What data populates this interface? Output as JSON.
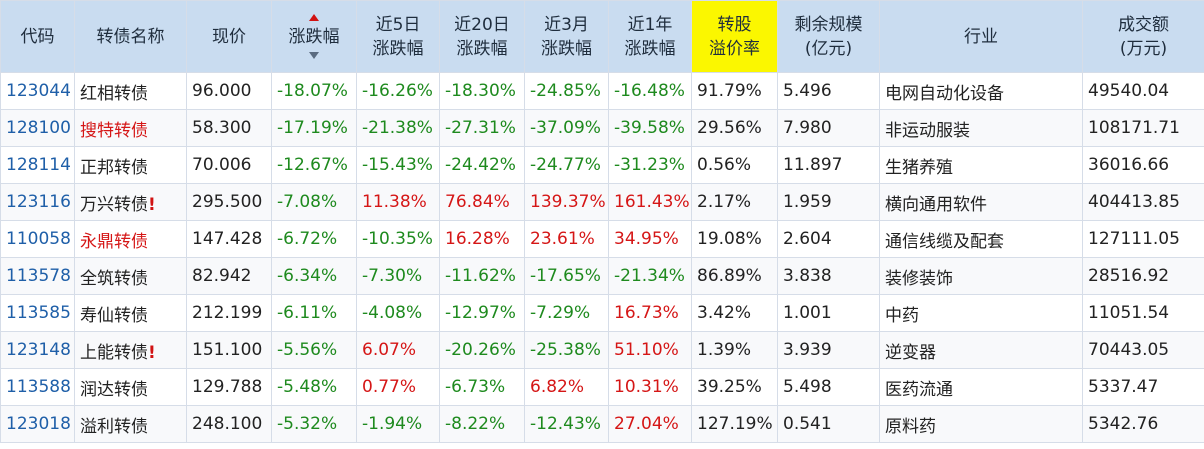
{
  "header": {
    "code": "代码",
    "name": "转债名称",
    "price": "现价",
    "change": "涨跌幅",
    "chg5d": [
      "近5日",
      "涨跌幅"
    ],
    "chg20d": [
      "近20日",
      "涨跌幅"
    ],
    "chg3m": [
      "近3月",
      "涨跌幅"
    ],
    "chg1y": [
      "近1年",
      "涨跌幅"
    ],
    "premium": [
      "转股",
      "溢价率"
    ],
    "remaining": [
      "剩余规模",
      "(亿元)"
    ],
    "industry": "行业",
    "turnover": [
      "成交额",
      "(万元)"
    ]
  },
  "colors": {
    "header_bg": "#c9dcf0",
    "highlight": "#fbf700",
    "up": "#d51616",
    "down": "#1e8a1e",
    "code": "#1f5fa8"
  },
  "rows": [
    {
      "code": "123044",
      "name": "红相转债",
      "name_red": false,
      "mark": "",
      "price": "96.000",
      "change": "-18.07%",
      "chg5d": "-16.26%",
      "chg20d": "-18.30%",
      "chg3m": "-24.85%",
      "chg1y": "-16.48%",
      "premium": "91.79%",
      "remaining": "5.496",
      "industry": "电网自动化设备",
      "turnover": "49540.04"
    },
    {
      "code": "128100",
      "name": "搜特转债",
      "name_red": true,
      "mark": "",
      "price": "58.300",
      "change": "-17.19%",
      "chg5d": "-21.38%",
      "chg20d": "-27.31%",
      "chg3m": "-37.09%",
      "chg1y": "-39.58%",
      "premium": "29.56%",
      "remaining": "7.980",
      "industry": "非运动服装",
      "turnover": "108171.71"
    },
    {
      "code": "128114",
      "name": "正邦转债",
      "name_red": false,
      "mark": "",
      "price": "70.006",
      "change": "-12.67%",
      "chg5d": "-15.43%",
      "chg20d": "-24.42%",
      "chg3m": "-24.77%",
      "chg1y": "-31.23%",
      "premium": "0.56%",
      "remaining": "11.897",
      "industry": "生猪养殖",
      "turnover": "36016.66"
    },
    {
      "code": "123116",
      "name": "万兴转债",
      "name_red": false,
      "mark": "!",
      "price": "295.500",
      "change": "-7.08%",
      "chg5d": "11.38%",
      "chg20d": "76.84%",
      "chg3m": "139.37%",
      "chg1y": "161.43%",
      "premium": "2.17%",
      "remaining": "1.959",
      "industry": "横向通用软件",
      "turnover": "404413.85"
    },
    {
      "code": "110058",
      "name": "永鼎转债",
      "name_red": true,
      "mark": "",
      "price": "147.428",
      "change": "-6.72%",
      "chg5d": "-10.35%",
      "chg20d": "16.28%",
      "chg3m": "23.61%",
      "chg1y": "34.95%",
      "premium": "19.08%",
      "remaining": "2.604",
      "industry": "通信线缆及配套",
      "turnover": "127111.05"
    },
    {
      "code": "113578",
      "name": "全筑转债",
      "name_red": false,
      "mark": "",
      "price": "82.942",
      "change": "-6.34%",
      "chg5d": "-7.30%",
      "chg20d": "-11.62%",
      "chg3m": "-17.65%",
      "chg1y": "-21.34%",
      "premium": "86.89%",
      "remaining": "3.838",
      "industry": "装修装饰",
      "turnover": "28516.92"
    },
    {
      "code": "113585",
      "name": "寿仙转债",
      "name_red": false,
      "mark": "",
      "price": "212.199",
      "change": "-6.11%",
      "chg5d": "-4.08%",
      "chg20d": "-12.97%",
      "chg3m": "-7.29%",
      "chg1y": "16.73%",
      "premium": "3.42%",
      "remaining": "1.001",
      "industry": "中药",
      "turnover": "11051.54"
    },
    {
      "code": "123148",
      "name": "上能转债",
      "name_red": false,
      "mark": "!",
      "price": "151.100",
      "change": "-5.56%",
      "chg5d": "6.07%",
      "chg20d": "-20.26%",
      "chg3m": "-25.38%",
      "chg1y": "51.10%",
      "premium": "1.39%",
      "remaining": "3.939",
      "industry": "逆变器",
      "turnover": "70443.05"
    },
    {
      "code": "113588",
      "name": "润达转债",
      "name_red": false,
      "mark": "",
      "price": "129.788",
      "change": "-5.48%",
      "chg5d": "0.77%",
      "chg20d": "-6.73%",
      "chg3m": "6.82%",
      "chg1y": "10.31%",
      "premium": "39.25%",
      "remaining": "5.498",
      "industry": "医药流通",
      "turnover": "5337.47"
    },
    {
      "code": "123018",
      "name": "溢利转债",
      "name_red": false,
      "mark": "",
      "price": "248.100",
      "change": "-5.32%",
      "chg5d": "-1.94%",
      "chg20d": "-8.22%",
      "chg3m": "-12.43%",
      "chg1y": "27.04%",
      "premium": "127.19%",
      "remaining": "0.541",
      "industry": "原料药",
      "turnover": "5342.76"
    }
  ]
}
